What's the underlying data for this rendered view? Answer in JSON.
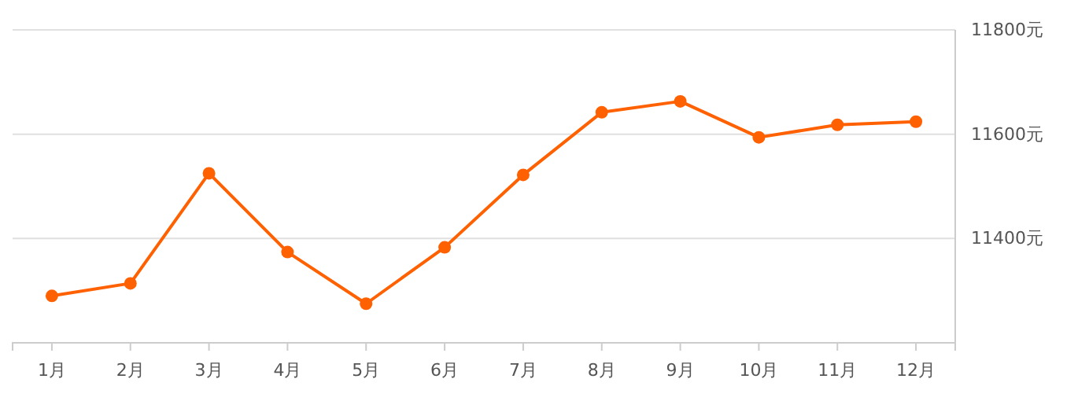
{
  "chart_data": {
    "type": "line",
    "categories": [
      "1月",
      "2月",
      "3月",
      "4月",
      "5月",
      "6月",
      "7月",
      "8月",
      "9月",
      "10月",
      "11月",
      "12月"
    ],
    "series": [
      {
        "color": "#ff6000",
        "values": [
          11290,
          11314,
          11525,
          11374,
          11275,
          11383,
          11522,
          11642,
          11663,
          11594,
          11618,
          11624
        ]
      }
    ],
    "ylim": [
      11200,
      11800
    ],
    "yticks": [
      {
        "value": 11400,
        "label": "11400元"
      },
      {
        "value": 11600,
        "label": "11600元"
      },
      {
        "value": 11800,
        "label": "11800元"
      }
    ],
    "grid": "y",
    "marker": "circle",
    "line_style": "solid"
  }
}
